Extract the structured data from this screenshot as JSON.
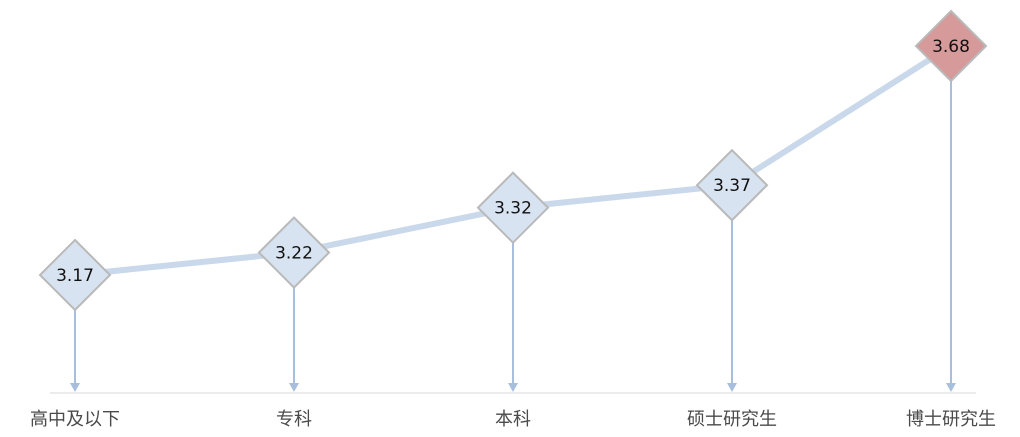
{
  "chart_data": {
    "type": "line",
    "categories": [
      "高中及以下",
      "专科",
      "本科",
      "硕士研究生",
      "博士研究生"
    ],
    "values": [
      3.17,
      3.22,
      3.32,
      3.37,
      3.68
    ],
    "value_labels": [
      "3.17",
      "3.22",
      "3.32",
      "3.37",
      "3.68"
    ],
    "highlight_index": 4,
    "colors": {
      "line": "#c9d8ea",
      "drop_line": "#a7bfdc",
      "marker_fill": "#d8e3f1",
      "marker_stroke": "#b9b9b9",
      "highlight_fill": "#d79a9a",
      "highlight_stroke": "#b9b9b9",
      "axis": "#d9d9d9"
    },
    "grid": false,
    "legend": "none"
  }
}
